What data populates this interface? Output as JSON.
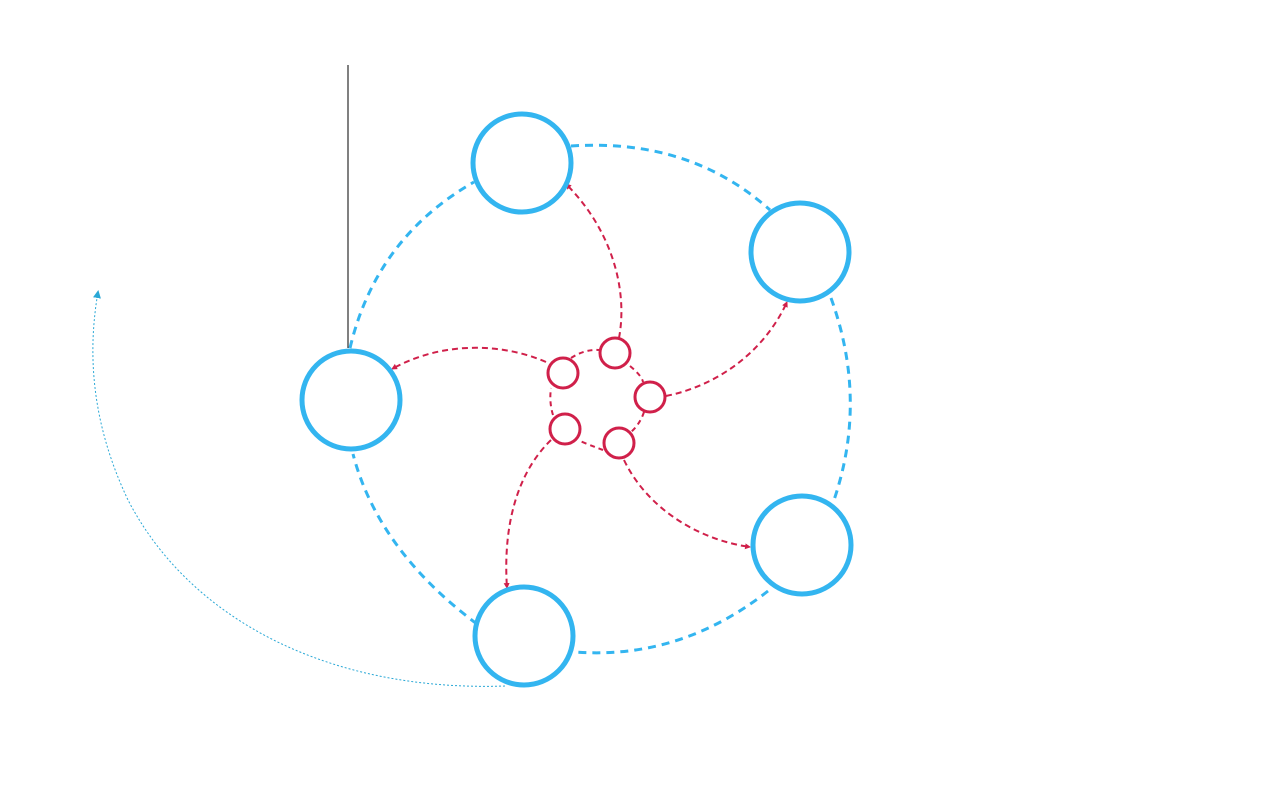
{
  "diagram": {
    "colors": {
      "outer": "#33b5f0",
      "inner": "#d0204a",
      "orbit": "#2aa8d6",
      "marker": "#000000",
      "background": "#ffffff"
    },
    "outer_nodes": [
      "node-top",
      "node-upper-right",
      "node-lower-right",
      "node-bottom",
      "node-left"
    ],
    "inner_nodes": [
      "inner-top",
      "inner-right",
      "inner-lower-right",
      "inner-lower-left",
      "inner-upper-left"
    ],
    "spokes": [
      {
        "from": "inner-top",
        "to": "node-top"
      },
      {
        "from": "inner-right",
        "to": "node-upper-right"
      },
      {
        "from": "inner-lower-right",
        "to": "node-lower-right"
      },
      {
        "from": "inner-lower-left",
        "to": "node-bottom"
      },
      {
        "from": "inner-upper-left",
        "to": "node-left"
      }
    ],
    "icons": [
      "arrowhead-icon"
    ]
  }
}
